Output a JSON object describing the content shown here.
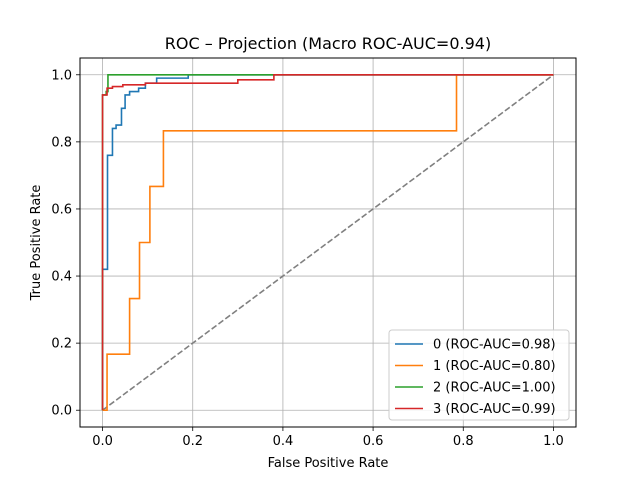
{
  "chart_data": {
    "type": "line",
    "title": "ROC – Projection (Macro ROC-AUC=0.94)",
    "xlabel": "False Positive Rate",
    "ylabel": "True Positive Rate",
    "xlim": [
      -0.05,
      1.05
    ],
    "ylim": [
      -0.05,
      1.05
    ],
    "xticks": [
      0.0,
      0.2,
      0.4,
      0.6,
      0.8,
      1.0
    ],
    "xtick_labels": [
      "0.0",
      "0.2",
      "0.4",
      "0.6",
      "0.8",
      "1.0"
    ],
    "yticks": [
      0.0,
      0.2,
      0.4,
      0.6,
      0.8,
      1.0
    ],
    "ytick_labels": [
      "0.0",
      "0.2",
      "0.4",
      "0.6",
      "0.8",
      "1.0"
    ],
    "grid": true,
    "legend_position": "bottom-right",
    "diagonal": {
      "name": "chance",
      "color": "#808080",
      "points": [
        [
          0,
          0
        ],
        [
          1,
          1
        ]
      ]
    },
    "series": [
      {
        "name": "0 (ROC-AUC=0.98)",
        "color": "#1f77b4",
        "points": [
          [
            0,
            0
          ],
          [
            0,
            0.42
          ],
          [
            0.011,
            0.42
          ],
          [
            0.011,
            0.76
          ],
          [
            0.022,
            0.76
          ],
          [
            0.022,
            0.84
          ],
          [
            0.03,
            0.84
          ],
          [
            0.03,
            0.85
          ],
          [
            0.042,
            0.85
          ],
          [
            0.042,
            0.9
          ],
          [
            0.05,
            0.9
          ],
          [
            0.05,
            0.94
          ],
          [
            0.06,
            0.94
          ],
          [
            0.06,
            0.95
          ],
          [
            0.08,
            0.95
          ],
          [
            0.08,
            0.96
          ],
          [
            0.095,
            0.96
          ],
          [
            0.095,
            0.975
          ],
          [
            0.12,
            0.975
          ],
          [
            0.12,
            0.99
          ],
          [
            0.19,
            0.99
          ],
          [
            0.19,
            1.0
          ],
          [
            1.0,
            1.0
          ]
        ]
      },
      {
        "name": "1 (ROC-AUC=0.80)",
        "color": "#ff7f0e",
        "points": [
          [
            0,
            0
          ],
          [
            0.01,
            0
          ],
          [
            0.01,
            0.167
          ],
          [
            0.06,
            0.167
          ],
          [
            0.06,
            0.333
          ],
          [
            0.082,
            0.333
          ],
          [
            0.082,
            0.5
          ],
          [
            0.105,
            0.5
          ],
          [
            0.105,
            0.667
          ],
          [
            0.135,
            0.667
          ],
          [
            0.135,
            0.833
          ],
          [
            0.785,
            0.833
          ],
          [
            0.785,
            1.0
          ],
          [
            1.0,
            1.0
          ]
        ]
      },
      {
        "name": "2 (ROC-AUC=1.00)",
        "color": "#2ca02c",
        "points": [
          [
            0,
            0
          ],
          [
            0,
            0.94
          ],
          [
            0.008,
            0.94
          ],
          [
            0.008,
            0.95
          ],
          [
            0.012,
            0.95
          ],
          [
            0.012,
            1.0
          ],
          [
            1.0,
            1.0
          ]
        ]
      },
      {
        "name": "3 (ROC-AUC=0.99)",
        "color": "#d62728",
        "points": [
          [
            0,
            0
          ],
          [
            0,
            0.94
          ],
          [
            0.01,
            0.94
          ],
          [
            0.01,
            0.96
          ],
          [
            0.022,
            0.96
          ],
          [
            0.022,
            0.965
          ],
          [
            0.045,
            0.965
          ],
          [
            0.045,
            0.97
          ],
          [
            0.095,
            0.97
          ],
          [
            0.095,
            0.975
          ],
          [
            0.3,
            0.975
          ],
          [
            0.3,
            0.985
          ],
          [
            0.38,
            0.985
          ],
          [
            0.38,
            1.0
          ],
          [
            1.0,
            1.0
          ]
        ]
      }
    ]
  }
}
